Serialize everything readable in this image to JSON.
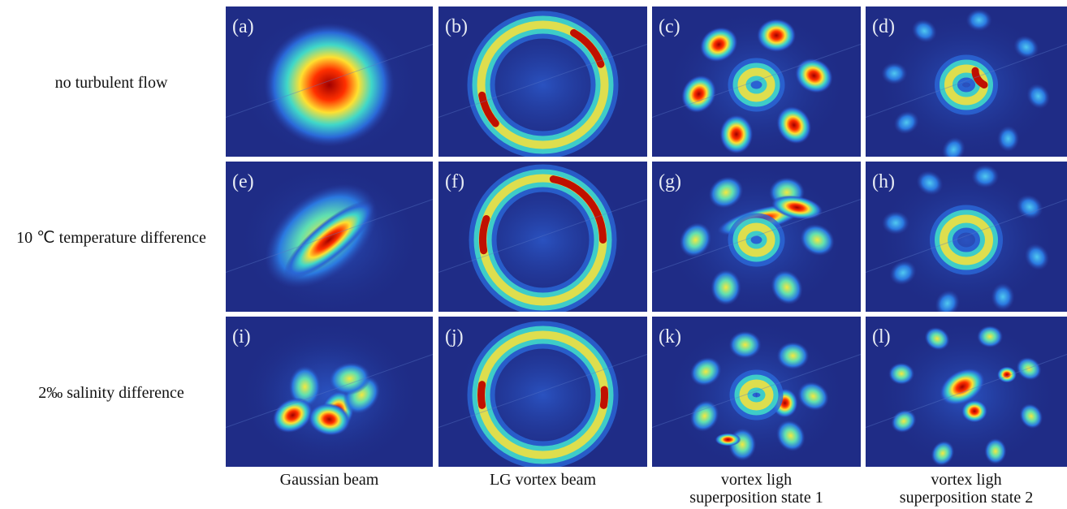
{
  "row_labels": [
    "no turbulent flow",
    "10 ℃ temperature difference",
    "2‰ salinity difference"
  ],
  "column_labels": [
    {
      "lines": [
        "Gaussian beam"
      ]
    },
    {
      "lines": [
        "LG vortex beam"
      ]
    },
    {
      "lines": [
        "vortex ligh",
        "superposition state 1"
      ]
    },
    {
      "lines": [
        "vortex ligh",
        "superposition state 2"
      ]
    }
  ],
  "panels": [
    {
      "label": "(a)"
    },
    {
      "label": "(b)"
    },
    {
      "label": "(c)"
    },
    {
      "label": "(d)"
    },
    {
      "label": "(e)"
    },
    {
      "label": "(f)"
    },
    {
      "label": "(g)"
    },
    {
      "label": "(h)"
    },
    {
      "label": "(i)"
    },
    {
      "label": "(j)"
    },
    {
      "label": "(k)"
    },
    {
      "label": "(l)"
    }
  ]
}
